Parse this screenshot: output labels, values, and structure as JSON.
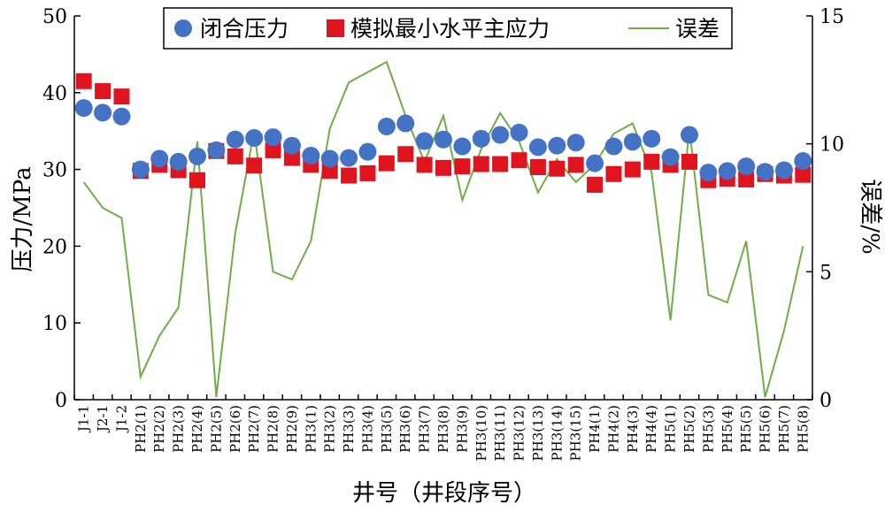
{
  "chart_data": {
    "type": "scatter",
    "categories": [
      "J1-1",
      "J2-1",
      "J1-2",
      "PH2(1)",
      "PH2(2)",
      "PH2(3)",
      "PH2(4)",
      "PH2(5)",
      "PH2(6)",
      "PH2(7)",
      "PH2(8)",
      "PH2(9)",
      "PH3(1)",
      "PH3(2)",
      "PH3(3)",
      "PH3(4)",
      "PH3(5)",
      "PH3(6)",
      "PH3(7)",
      "PH3(8)",
      "PH3(9)",
      "PH3(10)",
      "PH3(11)",
      "PH3(12)",
      "PH3(13)",
      "PH3(14)",
      "PH3(15)",
      "PH4(1)",
      "PH4(2)",
      "PH4(3)",
      "PH4(4)",
      "PH5(1)",
      "PH5(2)",
      "PH5(3)",
      "PH5(4)",
      "PH5(5)",
      "PH5(6)",
      "PH5(7)",
      "PH5(8)"
    ],
    "series": [
      {
        "name": "闭合压力",
        "marker": "circle",
        "axis": "left",
        "color": "#4472C4",
        "values": [
          38.0,
          37.4,
          36.9,
          30.0,
          31.4,
          31.0,
          31.7,
          32.5,
          33.9,
          34.1,
          34.2,
          33.1,
          31.8,
          31.4,
          31.5,
          32.3,
          35.6,
          36.0,
          33.7,
          33.9,
          33.0,
          34.0,
          34.5,
          34.8,
          32.9,
          33.1,
          33.5,
          30.8,
          33.0,
          33.6,
          34.0,
          31.6,
          34.5,
          29.6,
          29.8,
          30.4,
          29.7,
          29.9,
          31.1
        ]
      },
      {
        "name": "模拟最小水平主应力",
        "marker": "square",
        "axis": "left",
        "color": "#E0141E",
        "values": [
          41.5,
          40.2,
          39.5,
          29.8,
          30.6,
          29.9,
          28.6,
          32.4,
          31.7,
          30.5,
          32.5,
          31.5,
          30.6,
          29.8,
          29.2,
          29.5,
          30.8,
          32.0,
          30.6,
          30.2,
          30.4,
          30.7,
          30.7,
          31.2,
          30.3,
          30.1,
          30.6,
          28.0,
          29.4,
          30.0,
          31.0,
          30.6,
          31.0,
          28.6,
          28.8,
          28.7,
          29.4,
          29.2,
          29.3
        ]
      },
      {
        "name": "误差",
        "marker": "line",
        "axis": "right",
        "color": "#70AD47",
        "values": [
          8.5,
          7.5,
          7.1,
          0.9,
          2.5,
          3.6,
          10.1,
          0.1,
          6.5,
          10.5,
          5.0,
          4.7,
          6.2,
          10.6,
          12.4,
          12.8,
          13.2,
          11.1,
          9.3,
          11.1,
          7.8,
          9.8,
          11.2,
          10.1,
          8.1,
          9.4,
          8.5,
          9.2,
          10.4,
          10.8,
          8.9,
          3.1,
          10.6,
          4.1,
          3.8,
          6.2,
          0.1,
          2.7,
          6.0
        ]
      }
    ],
    "xlabel": "井号（井段序号）",
    "ylabel_left": "压力/MPa",
    "ylabel_right": "误差/%",
    "ylim_left": [
      0,
      50
    ],
    "ylim_right": [
      0,
      15
    ],
    "yticks_left": [
      "0",
      "10",
      "20",
      "30",
      "40",
      "50"
    ],
    "yticks_right": [
      "0",
      "5",
      "10",
      "15"
    ],
    "grid": false,
    "legend_position": "top-center"
  }
}
